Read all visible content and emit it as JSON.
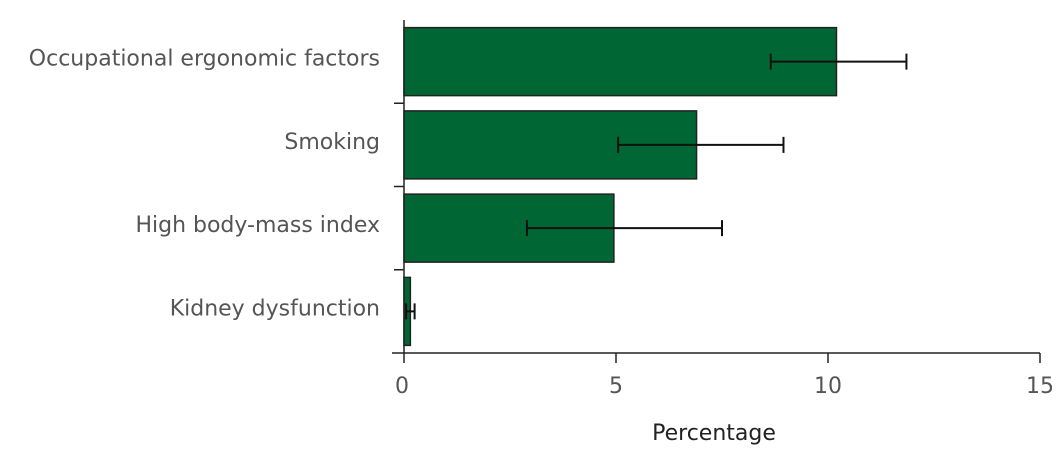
{
  "chart_data": {
    "type": "bar",
    "orientation": "horizontal",
    "categories": [
      "Occupational ergonomic factors",
      "Smoking",
      "High body-mass index",
      "Kidney dysfunction"
    ],
    "values": [
      10.2,
      6.9,
      4.95,
      0.15
    ],
    "error_low": [
      8.65,
      5.05,
      2.9,
      0.05
    ],
    "error_high": [
      11.85,
      8.95,
      7.5,
      0.25
    ],
    "xlabel": "Percentage",
    "xlim": [
      0,
      15
    ],
    "xticks": [
      0,
      5,
      10,
      15
    ],
    "bar_color": "#006633",
    "grid": false
  }
}
